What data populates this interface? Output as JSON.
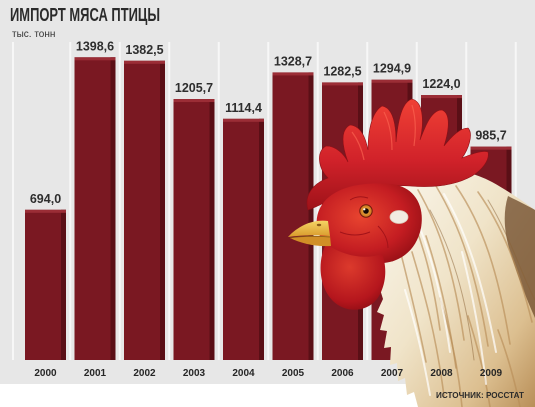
{
  "chart_data": {
    "type": "bar",
    "title": "ИМПОРТ МЯСА ПТИЦЫ",
    "ylabel": "тыс. тонн",
    "categories": [
      "2000",
      "2001",
      "2002",
      "2003",
      "2004",
      "2005",
      "2006",
      "2007",
      "2008",
      "2009"
    ],
    "values": [
      694.0,
      1398.6,
      1382.5,
      1205.7,
      1114.4,
      1328.7,
      1282.5,
      1294.9,
      1224.0,
      985.7
    ],
    "data_labels": [
      "694,0",
      "1398,6",
      "1382,5",
      "1205,7",
      "1114,4",
      "1328,7",
      "1282,5",
      "1294,9",
      "1224,0",
      "985,7"
    ],
    "ylim": [
      0,
      1400
    ],
    "source": "ИСТОЧНИК: РОССТАТ"
  },
  "colors": {
    "bar": "#7a1822",
    "bar_highlight": "#9b2d36",
    "bar_shade": "#5a0f16",
    "background": "#e7e7e7",
    "stripe": "#f7f7f7",
    "text": "#2b2b2b"
  }
}
